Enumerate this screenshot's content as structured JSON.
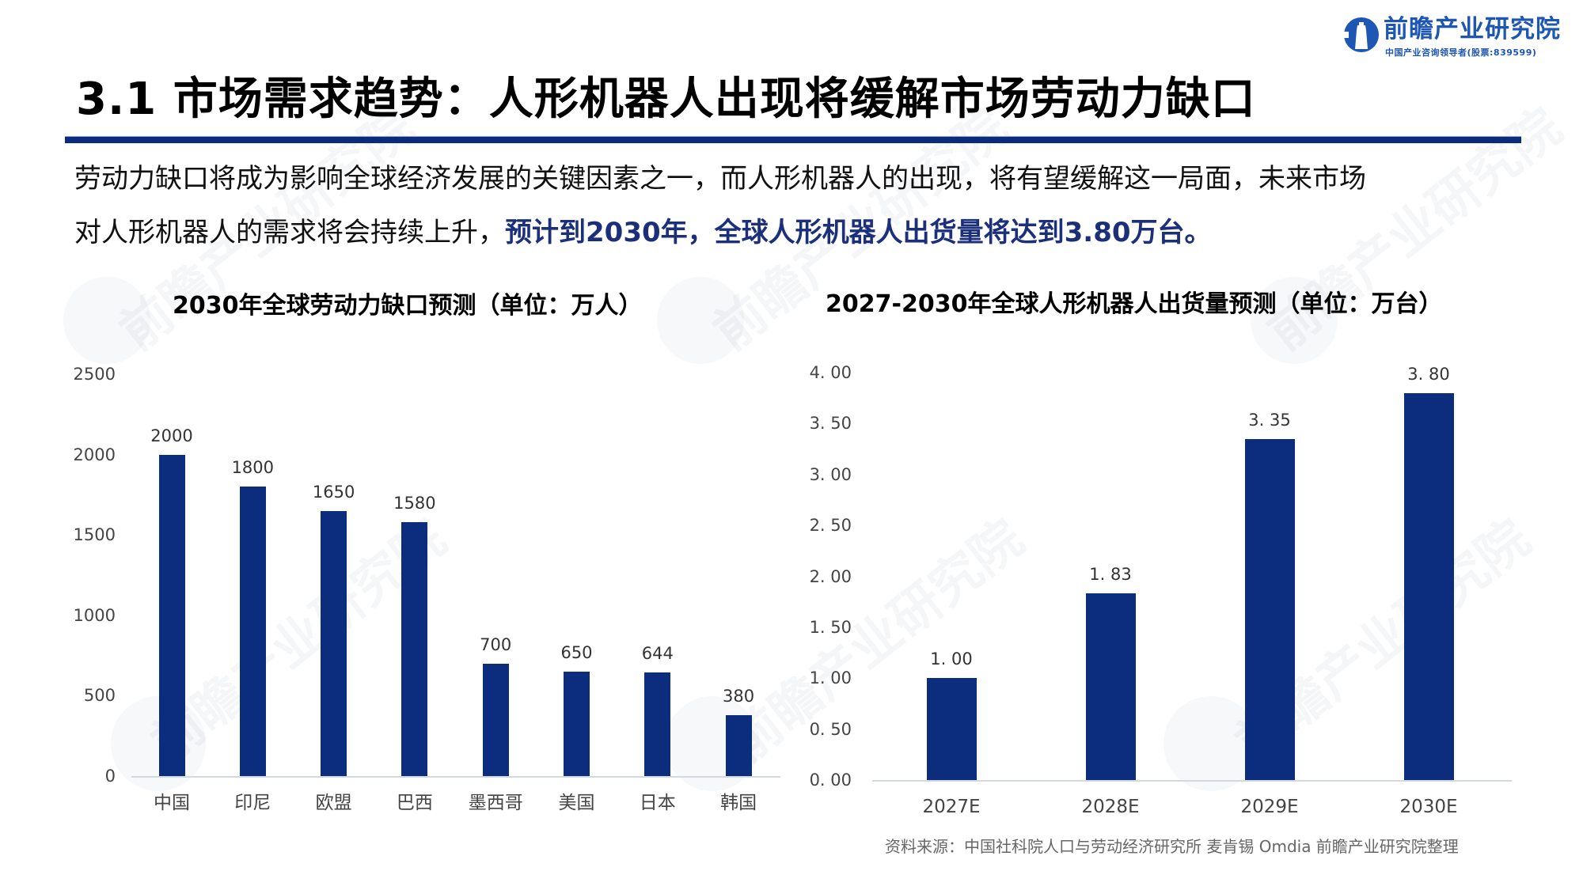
{
  "logo": {
    "name": "前瞻产业研究院",
    "tagline": "中国产业咨询领导者(股票:839599)",
    "color": "#1e56b3"
  },
  "title": "3.1 市场需求趋势：人形机器人出现将缓解市场劳动力缺口",
  "intro": {
    "line1": "劳动力缺口将成为影响全球经济发展的关键因素之一，而人形机器人的出现，将有望缓解这一局面，未来市场",
    "line2_plain": "对人形机器人的需求将会持续上升，",
    "line2_highlight": "预计到2030年，全球人形机器人出货量将达到3.80万台。"
  },
  "watermark": "前瞻产业研究院",
  "source": "资料来源：中国社科院人口与劳动经济研究所 麦肯锡 Omdia 前瞻产业研究院整理",
  "colors": {
    "bar": "#0c2d7d",
    "rule": "#0b2b7c",
    "highlight": "#1c2f7a"
  },
  "chart_data": [
    {
      "type": "bar",
      "title": "2030年全球劳动力缺口预测（单位：万人）",
      "xlabel": "",
      "ylabel": "万人",
      "categories": [
        "中国",
        "印尼",
        "欧盟",
        "巴西",
        "墨西哥",
        "美国",
        "日本",
        "韩国"
      ],
      "values": [
        2000,
        1800,
        1650,
        1580,
        700,
        650,
        644,
        380
      ],
      "value_labels": [
        "2000",
        "1800",
        "1650",
        "1580",
        "700",
        "650",
        "644",
        "380"
      ],
      "ylim": [
        0,
        2500
      ],
      "yticks": [
        "0",
        "500",
        "1000",
        "1500",
        "2000",
        "2500"
      ],
      "grid": false,
      "legend": null
    },
    {
      "type": "bar",
      "title": "2027-2030年全球人形机器人出货量预测（单位：万台）",
      "xlabel": "",
      "ylabel": "万台",
      "categories": [
        "2027E",
        "2028E",
        "2029E",
        "2030E"
      ],
      "values": [
        1.0,
        1.83,
        3.35,
        3.8
      ],
      "value_labels": [
        "1. 00",
        "1. 83",
        "3. 35",
        "3. 80"
      ],
      "ylim": [
        0,
        4.0
      ],
      "yticks": [
        "0. 00",
        "0. 50",
        "1. 00",
        "1. 50",
        "2. 00",
        "2. 50",
        "3. 00",
        "3. 50",
        "4. 00"
      ],
      "grid": false,
      "legend": null
    }
  ]
}
